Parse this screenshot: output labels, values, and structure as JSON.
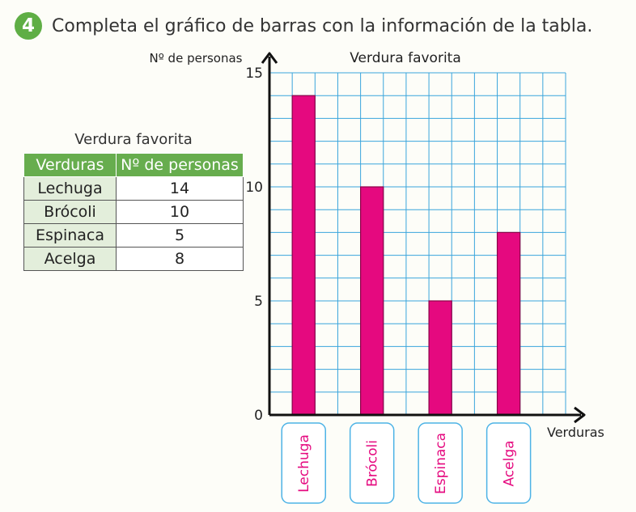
{
  "header": {
    "number": "4",
    "instruction": "Completa el gráfico de barras con la información de la tabla."
  },
  "table": {
    "title": "Verdura favorita",
    "headers": [
      "Verduras",
      "Nº de personas"
    ],
    "rows": [
      {
        "name": "Lechuga",
        "value": "14"
      },
      {
        "name": "Brócoli",
        "value": "10"
      },
      {
        "name": "Espinaca",
        "value": "5"
      },
      {
        "name": "Acelga",
        "value": "8"
      }
    ]
  },
  "colors": {
    "bar": "#e5097f",
    "grid": "#3aa5dc",
    "label_box_border": "#4db3e6",
    "label_text": "#e5097f",
    "badge": "#5fae45",
    "table_header": "#67ad4e"
  },
  "chart_data": {
    "type": "bar",
    "title": "Verdura favorita",
    "xlabel": "Verduras",
    "ylabel": "Nº de personas",
    "categories": [
      "Lechuga",
      "Brócoli",
      "Espinaca",
      "Acelga"
    ],
    "values": [
      14,
      10,
      5,
      8
    ],
    "ylim": [
      0,
      15
    ],
    "yticks": [
      "0",
      "5",
      "10",
      "15"
    ],
    "grid": true,
    "orientation": "vertical"
  }
}
